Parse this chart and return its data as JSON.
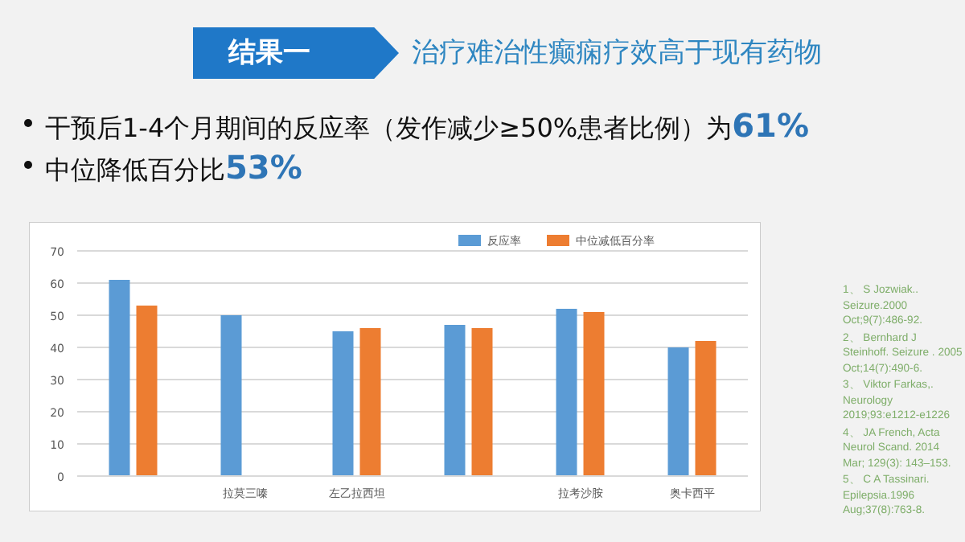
{
  "chart_data": {
    "type": "bar",
    "title": "结果一",
    "subtitle": "治疗难治性癫痫疗效高于现有药物",
    "annotations": [
      "干预后1-4个月期间的反应率（发作减少≥50%患者比例）为61%",
      "中位降低百分比53%",
      "1、 S Jozwiak.. Seizure.2000 Oct;9(7):486-92.",
      "2、 Bernhard J Steinhoff. Seizure . 2005 Oct;14(7):490-6.",
      "3、 Viktor Farkas,. Neurology 2019;93:e1212-e1226",
      "4、 JA French, Acta Neurol Scand. 2014 Mar; 129(3): 143–153.",
      "5、 C A Tassinari. Epilepsia.1996 Aug;37(8):763-8."
    ],
    "categories": [
      null,
      "拉莫三嗪",
      "左乙拉西坦",
      null,
      "拉考沙胺",
      "奥卡西平"
    ],
    "series": [
      {
        "name": "反应率",
        "color": "#5b9bd5",
        "values": [
          61,
          50,
          45,
          47,
          52,
          40
        ]
      },
      {
        "name": "中位减低百分率",
        "color": "#ed7d31",
        "values": [
          53,
          null,
          46,
          46,
          51,
          42
        ]
      }
    ],
    "ylim": [
      0,
      70
    ],
    "yticks": [
      0,
      10,
      20,
      30,
      40,
      50,
      60,
      70
    ],
    "grid": "y",
    "legend": "top right"
  }
}
